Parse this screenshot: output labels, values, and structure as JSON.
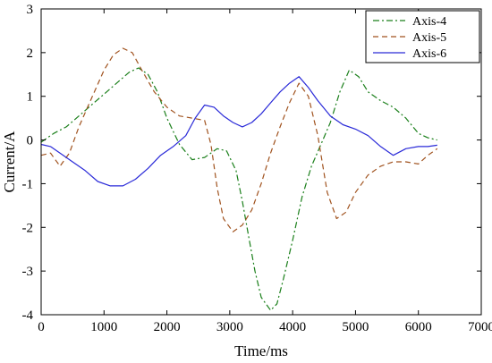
{
  "chart_data": {
    "type": "line",
    "xlabel": "Time/ms",
    "ylabel": "Current/A",
    "xlim": [
      0,
      7000
    ],
    "ylim": [
      -4,
      3
    ],
    "xticks": [
      0,
      1000,
      2000,
      3000,
      4000,
      5000,
      6000,
      7000
    ],
    "yticks": [
      -4,
      -3,
      -2,
      -1,
      0,
      1,
      2,
      3
    ],
    "grid": false,
    "legend_position": "top-right",
    "series": [
      {
        "name": "Axis-4",
        "color": "#1a7f1a",
        "style": "dashdot",
        "points": [
          [
            0,
            -0.05
          ],
          [
            100,
            0.05
          ],
          [
            200,
            0.15
          ],
          [
            400,
            0.3
          ],
          [
            600,
            0.55
          ],
          [
            800,
            0.8
          ],
          [
            1000,
            1.05
          ],
          [
            1200,
            1.3
          ],
          [
            1400,
            1.55
          ],
          [
            1550,
            1.65
          ],
          [
            1700,
            1.5
          ],
          [
            1850,
            1.1
          ],
          [
            2000,
            0.5
          ],
          [
            2200,
            -0.1
          ],
          [
            2400,
            -0.45
          ],
          [
            2600,
            -0.4
          ],
          [
            2800,
            -0.2
          ],
          [
            2950,
            -0.25
          ],
          [
            3100,
            -0.7
          ],
          [
            3200,
            -1.4
          ],
          [
            3300,
            -2.2
          ],
          [
            3400,
            -3.0
          ],
          [
            3500,
            -3.6
          ],
          [
            3650,
            -3.9
          ],
          [
            3750,
            -3.75
          ],
          [
            3850,
            -3.2
          ],
          [
            4000,
            -2.3
          ],
          [
            4150,
            -1.3
          ],
          [
            4300,
            -0.6
          ],
          [
            4450,
            -0.1
          ],
          [
            4600,
            0.4
          ],
          [
            4750,
            1.1
          ],
          [
            4900,
            1.6
          ],
          [
            5050,
            1.45
          ],
          [
            5200,
            1.1
          ],
          [
            5400,
            0.9
          ],
          [
            5600,
            0.75
          ],
          [
            5800,
            0.5
          ],
          [
            6000,
            0.15
          ],
          [
            6150,
            0.05
          ],
          [
            6300,
            0.0
          ]
        ]
      },
      {
        "name": "Axis-5",
        "color": "#a0521e",
        "style": "dashed",
        "points": [
          [
            0,
            -0.35
          ],
          [
            150,
            -0.3
          ],
          [
            300,
            -0.6
          ],
          [
            450,
            -0.3
          ],
          [
            600,
            0.3
          ],
          [
            800,
            0.95
          ],
          [
            1000,
            1.6
          ],
          [
            1150,
            1.95
          ],
          [
            1300,
            2.1
          ],
          [
            1450,
            2.0
          ],
          [
            1600,
            1.6
          ],
          [
            1800,
            1.1
          ],
          [
            2000,
            0.75
          ],
          [
            2200,
            0.55
          ],
          [
            2400,
            0.5
          ],
          [
            2600,
            0.45
          ],
          [
            2700,
            -0.1
          ],
          [
            2800,
            -1.1
          ],
          [
            2900,
            -1.8
          ],
          [
            3050,
            -2.1
          ],
          [
            3200,
            -1.95
          ],
          [
            3350,
            -1.6
          ],
          [
            3500,
            -1.0
          ],
          [
            3650,
            -0.3
          ],
          [
            3800,
            0.3
          ],
          [
            3950,
            0.85
          ],
          [
            4100,
            1.3
          ],
          [
            4250,
            1.0
          ],
          [
            4400,
            0.1
          ],
          [
            4550,
            -1.2
          ],
          [
            4700,
            -1.8
          ],
          [
            4850,
            -1.65
          ],
          [
            5000,
            -1.2
          ],
          [
            5200,
            -0.8
          ],
          [
            5400,
            -0.6
          ],
          [
            5600,
            -0.5
          ],
          [
            5800,
            -0.5
          ],
          [
            6000,
            -0.55
          ],
          [
            6150,
            -0.35
          ],
          [
            6300,
            -0.2
          ]
        ]
      },
      {
        "name": "Axis-6",
        "color": "#2a2ad8",
        "style": "solid",
        "points": [
          [
            0,
            -0.1
          ],
          [
            150,
            -0.15
          ],
          [
            300,
            -0.3
          ],
          [
            500,
            -0.5
          ],
          [
            700,
            -0.7
          ],
          [
            900,
            -0.95
          ],
          [
            1100,
            -1.05
          ],
          [
            1300,
            -1.05
          ],
          [
            1500,
            -0.9
          ],
          [
            1700,
            -0.65
          ],
          [
            1900,
            -0.35
          ],
          [
            2100,
            -0.15
          ],
          [
            2300,
            0.1
          ],
          [
            2450,
            0.5
          ],
          [
            2600,
            0.8
          ],
          [
            2750,
            0.75
          ],
          [
            2900,
            0.55
          ],
          [
            3050,
            0.4
          ],
          [
            3200,
            0.3
          ],
          [
            3350,
            0.4
          ],
          [
            3500,
            0.6
          ],
          [
            3650,
            0.85
          ],
          [
            3800,
            1.1
          ],
          [
            3950,
            1.3
          ],
          [
            4100,
            1.45
          ],
          [
            4250,
            1.2
          ],
          [
            4400,
            0.9
          ],
          [
            4600,
            0.55
          ],
          [
            4800,
            0.35
          ],
          [
            5000,
            0.25
          ],
          [
            5200,
            0.1
          ],
          [
            5400,
            -0.15
          ],
          [
            5600,
            -0.35
          ],
          [
            5800,
            -0.2
          ],
          [
            6000,
            -0.15
          ],
          [
            6150,
            -0.15
          ],
          [
            6300,
            -0.12
          ]
        ]
      }
    ]
  }
}
